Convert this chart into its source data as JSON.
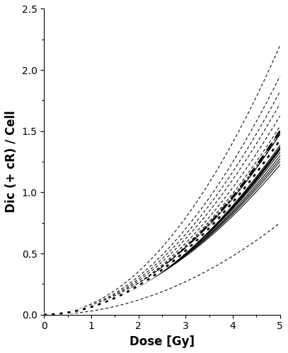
{
  "xlabel": "Dose [Gy]",
  "ylabel": "Dic (+ cR) / Cell",
  "xlim": [
    0.0,
    5.0
  ],
  "ylim": [
    0.0,
    2.5
  ],
  "xticks": [
    0.0,
    1.0,
    2.0,
    3.0,
    4.0,
    5.0
  ],
  "yticks": [
    0.0,
    0.5,
    1.0,
    1.5,
    2.0,
    2.5
  ],
  "background_color": "#ffffff",
  "solid_curves": [
    [
      0.005,
      0.058
    ],
    [
      0.008,
      0.056
    ],
    [
      0.01,
      0.0545
    ],
    [
      0.012,
      0.053
    ],
    [
      0.015,
      0.051
    ],
    [
      0.018,
      0.0495
    ],
    [
      0.02,
      0.048
    ],
    [
      0.025,
      0.046
    ],
    [
      0.028,
      0.0445
    ],
    [
      0.03,
      0.043
    ]
  ],
  "dashed_curves": [
    [
      0.0,
      0.088
    ],
    [
      0.0,
      0.078
    ],
    [
      0.0,
      0.073
    ],
    [
      0.0,
      0.069
    ],
    [
      0.0,
      0.065
    ],
    [
      0.008,
      0.06
    ],
    [
      0.01,
      0.058
    ],
    [
      0.015,
      0.056
    ],
    [
      0.0,
      0.03
    ]
  ],
  "bold_solid": [
    0.012,
    0.052
  ],
  "bold_dashed": [
    0.005,
    0.059
  ],
  "bold_dotted": [
    0.008,
    0.0555
  ]
}
